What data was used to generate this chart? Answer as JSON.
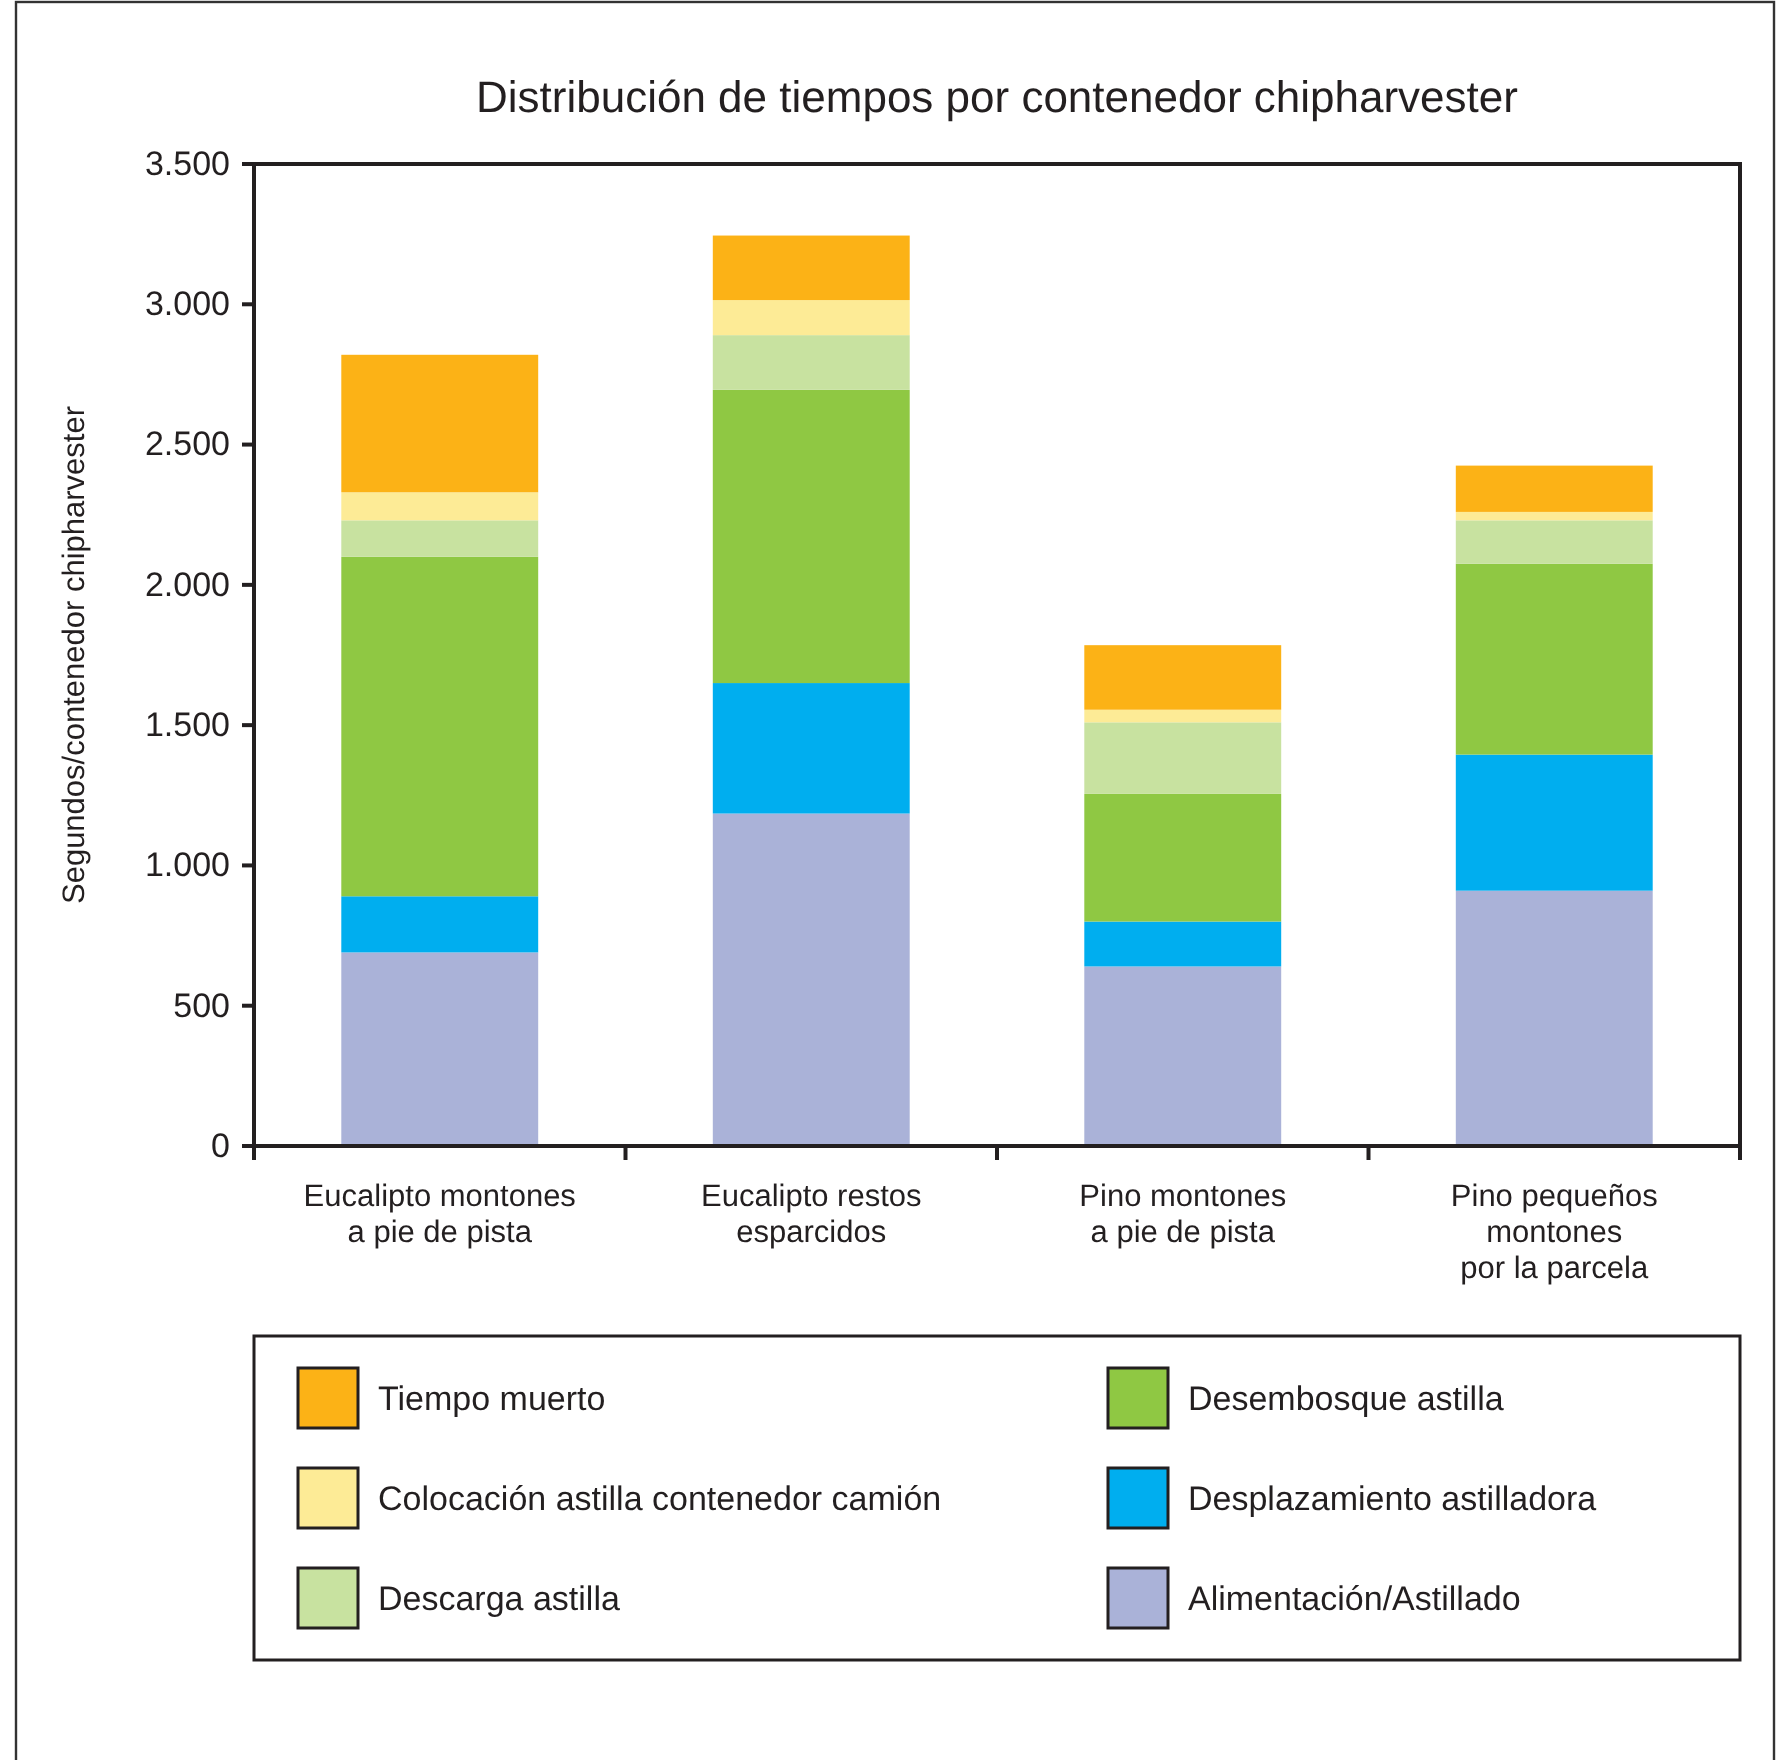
{
  "chart_data": {
    "type": "bar",
    "stacked": true,
    "title": "Distribución de tiempos por contenedor chipharvester",
    "ylabel": "Segundos/contenedor chipharvester",
    "categories": [
      "Eucalipto montones\na pie de pista",
      "Eucalipto restos\nesparcidos",
      "Pino montones\na pie de pista",
      "Pino pequeños\nmontones\npor la parcela"
    ],
    "series": [
      {
        "name": "Alimentación/Astillado",
        "color": "#aab2d8",
        "values": [
          690,
          1185,
          640,
          910
        ]
      },
      {
        "name": "Desplazamiento astilladora",
        "color": "#00aeef",
        "values": [
          200,
          465,
          160,
          485
        ]
      },
      {
        "name": "Desembosque astilla",
        "color": "#8fc843",
        "values": [
          1210,
          1045,
          455,
          680
        ]
      },
      {
        "name": "Descarga astilla",
        "color": "#c8e2a0",
        "values": [
          130,
          195,
          255,
          155
        ]
      },
      {
        "name": "Colocación astilla contenedor camión",
        "color": "#fdeb96",
        "values": [
          100,
          125,
          45,
          30
        ]
      },
      {
        "name": "Tiempo muerto",
        "color": "#fcb216",
        "values": [
          490,
          230,
          230,
          165
        ]
      }
    ],
    "ylim": [
      0,
      3500
    ],
    "yticks": [
      0,
      500,
      {
        "value": 1000,
        "label": "1.000"
      },
      {
        "value": 1500,
        "label": "1.500"
      },
      {
        "value": 2000,
        "label": "2.000"
      },
      {
        "value": 2500,
        "label": "2.500"
      },
      {
        "value": 3000,
        "label": "3.000"
      },
      {
        "value": 3500,
        "label": "3.500"
      }
    ],
    "grid": false,
    "legend": "bottom"
  }
}
